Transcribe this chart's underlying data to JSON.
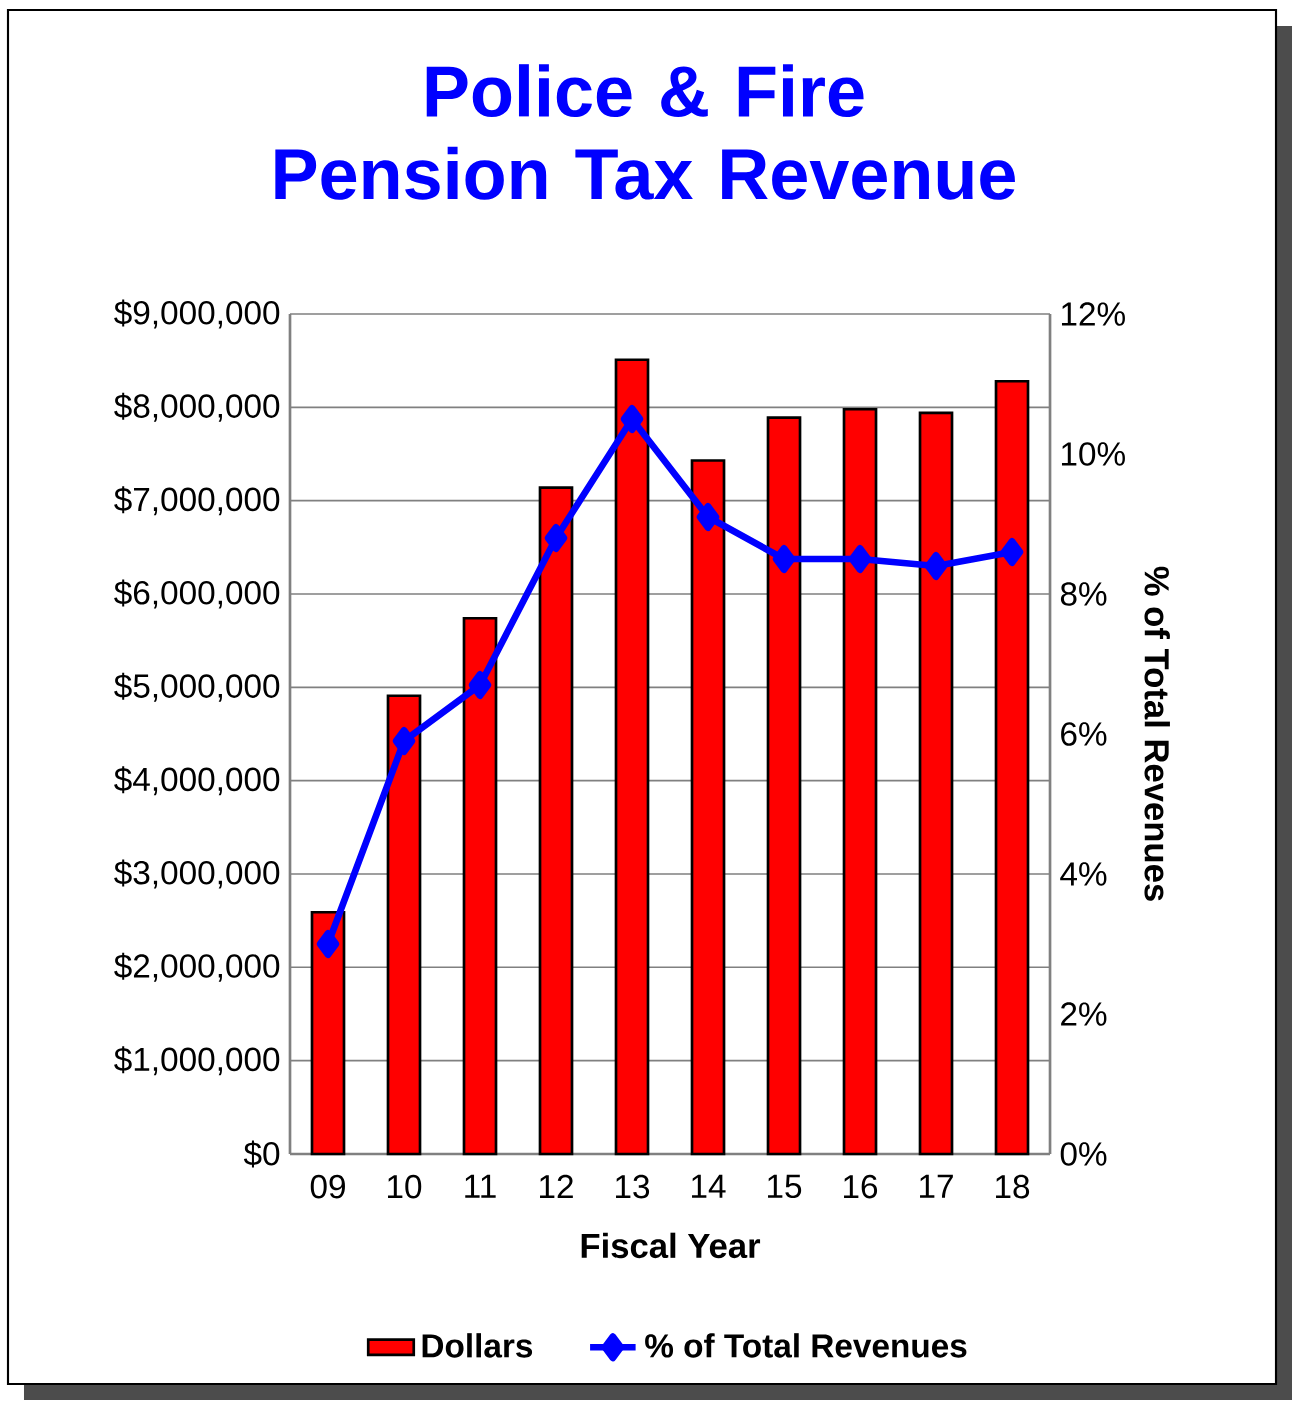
{
  "chart_data": {
    "type": "bar",
    "title": "Police & Fire Pension Tax Revenue",
    "xlabel": "Fiscal Year",
    "y2label": "% of Total Revenues",
    "categories": [
      "09",
      "10",
      "11",
      "12",
      "13",
      "14",
      "15",
      "16",
      "17",
      "18"
    ],
    "series": [
      {
        "name": "Dollars",
        "color": "#ff0000",
        "values": [
          2590000,
          4910000,
          5740000,
          7140000,
          8510000,
          7430000,
          7890000,
          7980000,
          7940000,
          8280000
        ]
      },
      {
        "name": "% of Total Revenues",
        "type": "line",
        "axis": "y2",
        "color": "#0000ff",
        "marker": "diamond",
        "line_style": "solid",
        "values": [
          3.0,
          5.9,
          6.7,
          8.8,
          10.5,
          9.1,
          8.5,
          8.5,
          8.4,
          8.6
        ]
      }
    ],
    "ylim": [
      0,
      9000000
    ],
    "yticks": [
      {
        "value": 0,
        "label": "$0"
      },
      {
        "value": 1000000,
        "label": "$1,000,000"
      },
      {
        "value": 2000000,
        "label": "$2,000,000"
      },
      {
        "value": 3000000,
        "label": "$3,000,000"
      },
      {
        "value": 4000000,
        "label": "$4,000,000"
      },
      {
        "value": 5000000,
        "label": "$5,000,000"
      },
      {
        "value": 6000000,
        "label": "$6,000,000"
      },
      {
        "value": 7000000,
        "label": "$7,000,000"
      },
      {
        "value": 8000000,
        "label": "$8,000,000"
      },
      {
        "value": 9000000,
        "label": "$9,000,000"
      }
    ],
    "y2lim": [
      0,
      12
    ],
    "y2ticks": [
      {
        "value": 0,
        "label": "0%"
      },
      {
        "value": 2,
        "label": "2%"
      },
      {
        "value": 4,
        "label": "4%"
      },
      {
        "value": 6,
        "label": "6%"
      },
      {
        "value": 8,
        "label": "8%"
      },
      {
        "value": 10,
        "label": "10%"
      },
      {
        "value": 12,
        "label": "12%"
      }
    ],
    "grid": "y",
    "legend": "bottom"
  }
}
